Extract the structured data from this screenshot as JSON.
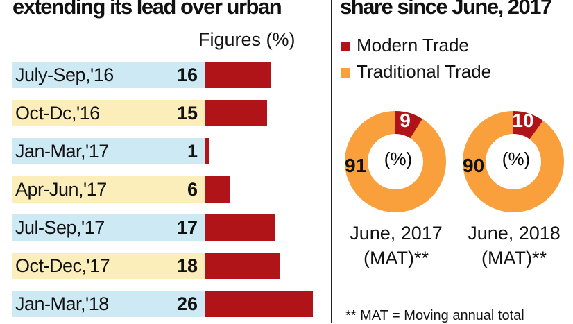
{
  "left_panel": {
    "title": "extending its lead over urban",
    "unit_note": "Figures (%)"
  },
  "right_panel": {
    "title": "share since June, 2017",
    "footnote": "** MAT = Moving annual total"
  },
  "colors": {
    "bar": "#b01418",
    "label_bg_blue": "#cde9f3",
    "label_bg_yellow": "#fbeebb",
    "modern_trade": "#b01418",
    "traditional_trade": "#f9a03c"
  },
  "chart_data": [
    {
      "type": "bar",
      "orientation": "horizontal",
      "categories": [
        "July-Sep,'16",
        "Oct-Dc,'16",
        "Jan-Mar,'17",
        "Apr-Jun,'17",
        "Jul-Sep,'17",
        "Oct-Dec,'17",
        "Jan-Mar,'18"
      ],
      "values": [
        16,
        15,
        1,
        6,
        17,
        18,
        26
      ],
      "title": "extending its lead over urban",
      "ylabel": "Figures (%)"
    },
    {
      "type": "pie",
      "donut": true,
      "title": "share since June, 2017",
      "legend": [
        "Modern Trade",
        "Traditional Trade"
      ],
      "legend_position": "top-left",
      "center_label": "(%)",
      "charts": [
        {
          "caption_line1": "June, 2017",
          "caption_line2": "(MAT)**",
          "values": [
            9,
            91
          ]
        },
        {
          "caption_line1": "June, 2018",
          "caption_line2": "(MAT)**",
          "values": [
            10,
            90
          ]
        }
      ]
    }
  ]
}
